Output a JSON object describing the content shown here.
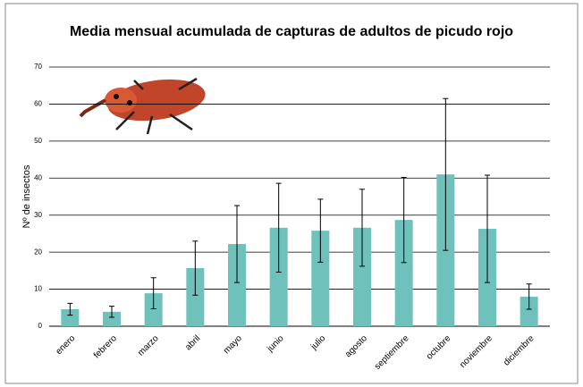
{
  "chart_data": {
    "type": "bar",
    "title": "Media mensual acumulada de capturas de adultos de picudo rojo",
    "y_label": "Nº de insectos",
    "categories": [
      "enero",
      "febrero",
      "marzo",
      "abril",
      "mayo",
      "junio",
      "julio",
      "agosto",
      "septiembre",
      "octubre",
      "noviembre",
      "diciembre"
    ],
    "values": [
      4.6,
      3.9,
      8.9,
      15.7,
      22.2,
      26.6,
      25.8,
      26.6,
      28.7,
      41,
      26.3,
      8
    ],
    "errors": [
      1.6,
      1.5,
      4.2,
      7.3,
      10.4,
      12,
      8.5,
      10.4,
      11.5,
      20.5,
      14.5,
      3.4
    ],
    "color": "#6fc1bc",
    "ylim": [
      0,
      70
    ],
    "yticks": [
      0,
      10,
      20,
      30,
      40,
      50,
      60,
      70
    ],
    "grid": true
  }
}
